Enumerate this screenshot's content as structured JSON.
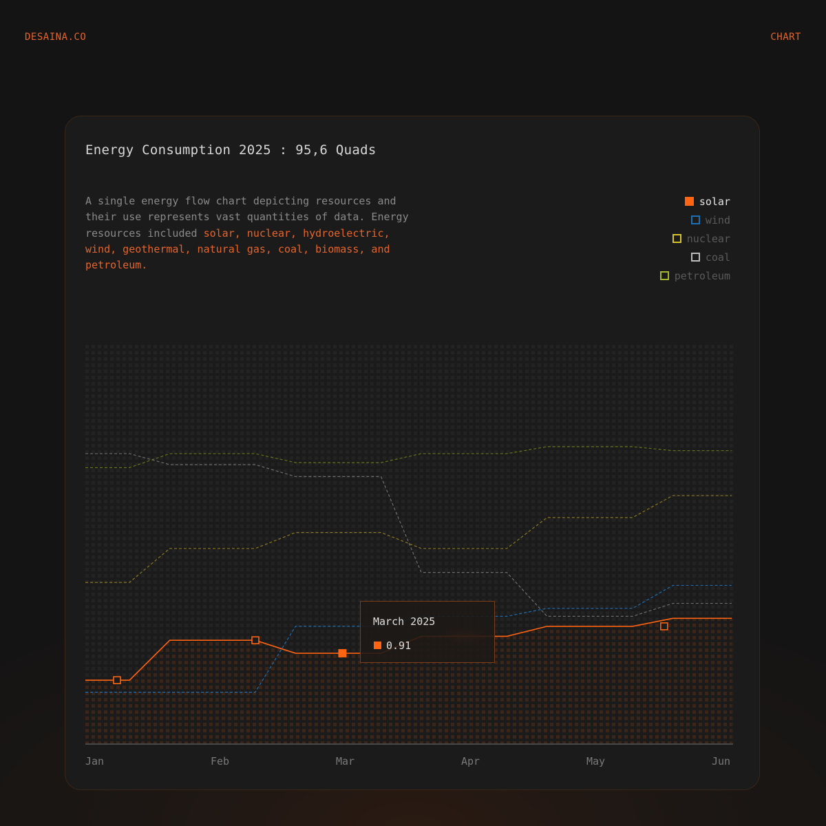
{
  "brand": "DESAINA.CO",
  "nav": {
    "chart_label": "CHART"
  },
  "card": {
    "title": "Energy Consumption 2025 : 95,6 Quads",
    "description_plain": "A single energy flow chart depicting resources and their use represents vast quantities of data. Energy resources included",
    "description_highlight": "solar, nuclear, hydroelectric, wind, geothermal, natural gas, coal, biomass, and petroleum."
  },
  "legend": [
    {
      "label": "solar",
      "color": "#ff6412",
      "filled": true,
      "active": true
    },
    {
      "label": "wind",
      "color": "#1e6fb4",
      "filled": false,
      "active": false
    },
    {
      "label": "nuclear",
      "color": "#d6c42a",
      "filled": false,
      "active": false
    },
    {
      "label": "coal",
      "color": "#bdbdbd",
      "filled": false,
      "active": false
    },
    {
      "label": "petroleum",
      "color": "#a8b82c",
      "filled": false,
      "active": false
    }
  ],
  "tooltip": {
    "title": "March 2025",
    "value": "0.91",
    "color": "#ff6412"
  },
  "chart_data": {
    "type": "line",
    "categories": [
      "Jan",
      "Feb",
      "Mar",
      "Apr",
      "May",
      "Jun"
    ],
    "ylim": [
      0,
      4
    ],
    "series": [
      {
        "name": "solar",
        "color": "#ff6412",
        "style": "solid",
        "values": [
          0.64,
          1.04,
          0.91,
          1.08,
          1.18,
          1.26
        ],
        "markers": [
          0.5,
          1.6,
          2.6,
          3.6,
          4.85,
          5.85
        ]
      },
      {
        "name": "wind",
        "color": "#1e6fb4",
        "style": "dashed",
        "values": [
          0.52,
          0.52,
          1.18,
          1.28,
          1.36,
          1.59
        ]
      },
      {
        "name": "nuclear",
        "color": "#8a7a20",
        "style": "dashed",
        "values": [
          1.62,
          1.96,
          2.12,
          1.96,
          2.27,
          2.49
        ]
      },
      {
        "name": "coal",
        "color": "#6e6e6e",
        "style": "dashed",
        "values": [
          2.91,
          2.8,
          2.68,
          1.72,
          1.28,
          1.41
        ]
      },
      {
        "name": "petroleum",
        "color": "#6a7418",
        "style": "dashed",
        "values": [
          2.77,
          2.91,
          2.82,
          2.91,
          2.98,
          2.94
        ]
      }
    ],
    "grid": "dot-matrix",
    "legend_position": "top-right"
  }
}
